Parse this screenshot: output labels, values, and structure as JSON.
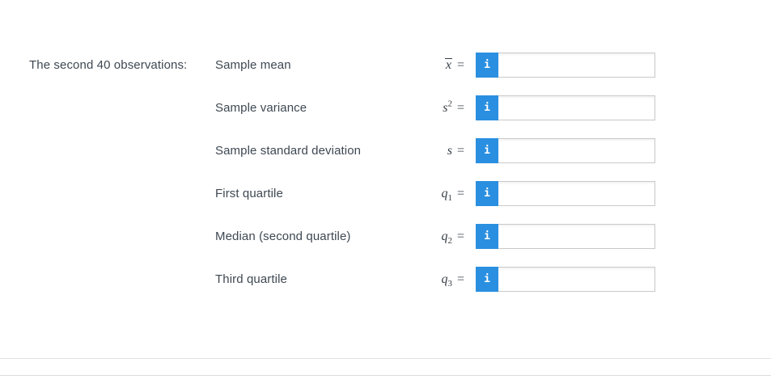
{
  "heading": {
    "text": "The second 40 observations:"
  },
  "equals_sign": "=",
  "info_button": {
    "label": "i"
  },
  "rows": [
    {
      "label": "Sample mean",
      "symbol": {
        "base": "x",
        "decoration": "overline"
      },
      "input_value": "",
      "input_placeholder": ""
    },
    {
      "label": "Sample variance",
      "symbol": {
        "base": "s",
        "sup": "2"
      },
      "input_value": "",
      "input_placeholder": ""
    },
    {
      "label": "Sample standard deviation",
      "symbol": {
        "base": "s"
      },
      "input_value": "",
      "input_placeholder": ""
    },
    {
      "label": "First quartile",
      "symbol": {
        "base": "q",
        "sub": "1"
      },
      "input_value": "",
      "input_placeholder": ""
    },
    {
      "label": "Median (second quartile)",
      "symbol": {
        "base": "q",
        "sub": "2"
      },
      "input_value": "",
      "input_placeholder": ""
    },
    {
      "label": "Third quartile",
      "symbol": {
        "base": "q",
        "sub": "3"
      },
      "input_value": "",
      "input_placeholder": ""
    }
  ],
  "colors": {
    "accent_blue": "#2a8fe0",
    "text": "#3e4852",
    "input_border": "#c9c9c9",
    "divider": "#e3e3e3"
  }
}
